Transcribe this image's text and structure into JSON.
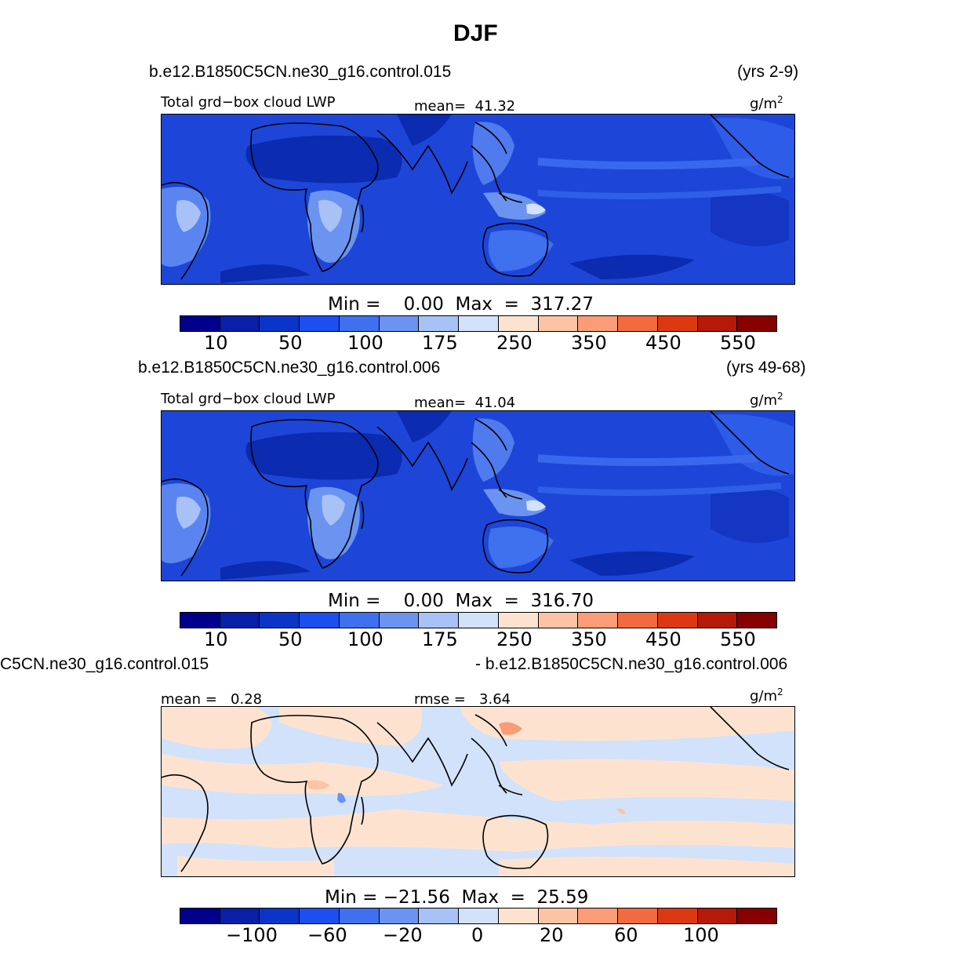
{
  "figure_title": "DJF",
  "colors": {
    "blue_scale": [
      "#00008c",
      "#0a1fa8",
      "#0b35c9",
      "#1c4ef0",
      "#3f70ee",
      "#6b94f0",
      "#a8c1f6",
      "#d2e2fb",
      "#fde3cf",
      "#fcc4a5",
      "#f99c77",
      "#f26a40",
      "#dc3912",
      "#b41a07",
      "#860000"
    ]
  },
  "panels": [
    {
      "case": "b.e12.B1850C5CN.ne30_g16.control.015",
      "years": "(yrs 2-9)",
      "field_label": "Total grd−box cloud LWP",
      "mean_text": "mean=  41.32",
      "units": "g/m",
      "units_sup": "2",
      "minmax_text": "Min =    0.00  Max  =  317.27",
      "ticks": [
        "10",
        "50",
        "100",
        "175",
        "250",
        "350",
        "450",
        "550"
      ]
    },
    {
      "case": "b.e12.B1850C5CN.ne30_g16.control.006",
      "years": "(yrs 49-68)",
      "field_label": "Total grd−box cloud LWP",
      "mean_text": "mean=  41.04",
      "units": "g/m",
      "units_sup": "2",
      "minmax_text": "Min =    0.00  Max  =  316.70",
      "ticks": [
        "10",
        "50",
        "100",
        "175",
        "250",
        "350",
        "450",
        "550"
      ]
    },
    {
      "case_left": "C5CN.ne30_g16.control.015",
      "case_right": "- b.e12.B1850C5CN.ne30_g16.control.006",
      "mean_text": "mean =   0.28",
      "rmse_text": "rmse =   3.64",
      "units": "g/m",
      "units_sup": "2",
      "minmax_text": "Min = −21.56  Max  =  25.59",
      "ticks": [
        "−100",
        "−60",
        "−20",
        "0",
        "20",
        "60",
        "100"
      ]
    }
  ]
}
